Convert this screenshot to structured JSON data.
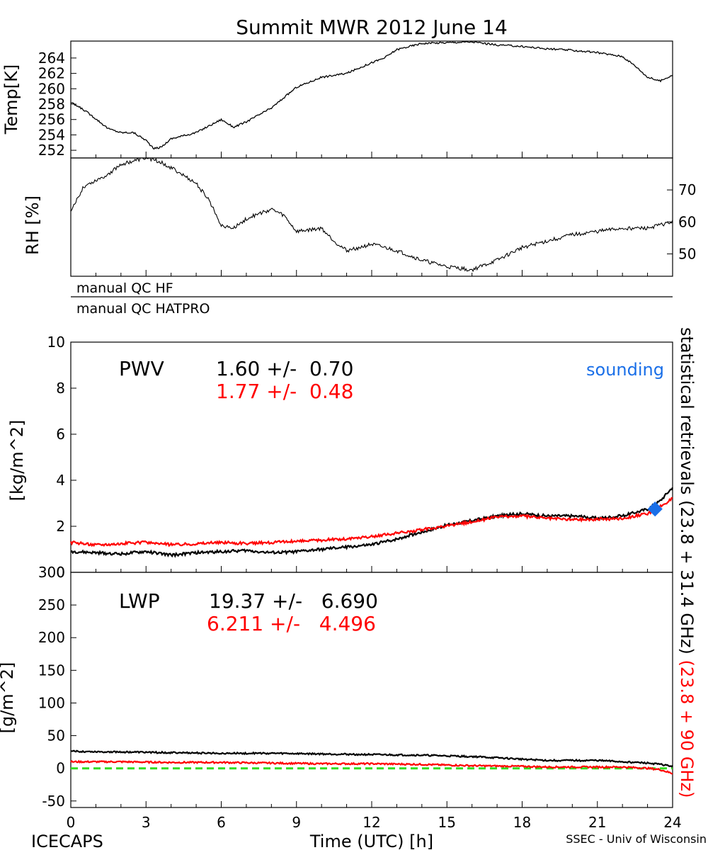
{
  "title": "Summit MWR 2012 June 14",
  "footer": {
    "left": "ICECAPS",
    "center": "Time (UTC) [h]",
    "right": "SSEC - Univ of Wisconsin"
  },
  "colors": {
    "hf": "#000000",
    "hatpro": "#ff0000",
    "sounding": "#1a6fe8",
    "zero_line": "#33dd22"
  },
  "chart_data": [
    {
      "type": "line",
      "panel": "temperature",
      "ylabel": "Temp[K]",
      "ylim": [
        251,
        266.2
      ],
      "yticks": [
        252,
        254,
        256,
        258,
        260,
        262,
        264
      ],
      "x": [
        0,
        0.5,
        1,
        1.5,
        2,
        2.5,
        3,
        3.3,
        3.6,
        4,
        5,
        6,
        6.5,
        7,
        8,
        9,
        10,
        11,
        12,
        12.5,
        13,
        14,
        15,
        16,
        17,
        18,
        19,
        20,
        21,
        22,
        22.5,
        23,
        23.5,
        24
      ],
      "series": [
        {
          "name": "Temp",
          "values": [
            258.2,
            257.3,
            256.1,
            254.8,
            254.3,
            254.3,
            253.3,
            252.2,
            252.4,
            253.5,
            254.3,
            256.0,
            255.0,
            255.7,
            257.5,
            260.2,
            261.5,
            262.0,
            263.4,
            264.0,
            265.1,
            265.9,
            266.0,
            266.1,
            265.7,
            265.5,
            265.2,
            265.0,
            264.7,
            264.2,
            263.0,
            261.5,
            261.0,
            261.8
          ]
        }
      ]
    },
    {
      "type": "line",
      "panel": "relative_humidity",
      "ylabel": "RH [%]",
      "ylim": [
        43,
        80
      ],
      "yticks": [
        50,
        60,
        70
      ],
      "x": [
        0,
        0.5,
        1,
        1.5,
        2,
        2.5,
        3,
        3.5,
        4,
        5,
        5.5,
        6,
        6.5,
        7,
        8,
        8.5,
        9,
        10,
        10.5,
        11,
        12,
        13,
        14,
        15,
        16,
        17,
        18,
        19,
        20,
        21,
        22,
        23,
        24
      ],
      "series": [
        {
          "name": "RH",
          "values": [
            63,
            71,
            73,
            75,
            78,
            79,
            80,
            79,
            77,
            72,
            67,
            59,
            58,
            61,
            64,
            62,
            57,
            58,
            54,
            51,
            53,
            51,
            48,
            46,
            45,
            48,
            52,
            54,
            56,
            57,
            58,
            58,
            60
          ]
        }
      ]
    },
    {
      "type": "line",
      "panel": "precipitable_water_vapor",
      "label": "PWV",
      "ylabel": "[kg/m^2]",
      "ylim": [
        0,
        10
      ],
      "yticks": [
        0,
        2,
        4,
        6,
        8,
        10
      ],
      "stats": [
        {
          "name": "HF",
          "text": "1.60 +/-  0.70"
        },
        {
          "name": "HATPRO",
          "text": "1.77 +/-  0.48"
        }
      ],
      "x": [
        0,
        1,
        2,
        3,
        4,
        5,
        6,
        7,
        8,
        9,
        10,
        11,
        12,
        13,
        14,
        15,
        16,
        17,
        18,
        19,
        20,
        21,
        22,
        23,
        23.5,
        24
      ],
      "series": [
        {
          "name": "HF",
          "values": [
            0.9,
            0.85,
            0.8,
            0.9,
            0.75,
            0.85,
            0.9,
            0.95,
            0.85,
            0.9,
            1.0,
            1.1,
            1.2,
            1.45,
            1.75,
            2.05,
            2.25,
            2.45,
            2.55,
            2.45,
            2.45,
            2.35,
            2.45,
            2.75,
            3.1,
            3.7
          ]
        },
        {
          "name": "HATPRO",
          "values": [
            1.3,
            1.2,
            1.25,
            1.3,
            1.2,
            1.25,
            1.3,
            1.25,
            1.3,
            1.35,
            1.4,
            1.45,
            1.55,
            1.7,
            1.85,
            2.0,
            2.2,
            2.4,
            2.45,
            2.35,
            2.3,
            2.3,
            2.35,
            2.55,
            2.85,
            3.2
          ]
        }
      ],
      "sounding": {
        "label": "sounding",
        "x": 23.3,
        "y": 2.75
      }
    },
    {
      "type": "line",
      "panel": "liquid_water_path",
      "label": "LWP",
      "ylabel": "[g/m^2]",
      "ylim": [
        -60,
        300
      ],
      "yticks": [
        -50,
        0,
        50,
        100,
        150,
        200,
        250,
        300
      ],
      "stats": [
        {
          "name": "HF",
          "text": "19.37 +/-   6.690"
        },
        {
          "name": "HATPRO",
          "text": "6.211 +/-   4.496"
        }
      ],
      "x": [
        0,
        2,
        4,
        6,
        8,
        10,
        12,
        14,
        16,
        18,
        19,
        20,
        21,
        22,
        23,
        23.5,
        24
      ],
      "series": [
        {
          "name": "HF",
          "values": [
            26,
            25,
            24,
            23,
            23,
            22,
            21,
            20,
            18,
            14,
            12,
            12,
            12,
            10,
            8,
            6,
            3
          ]
        },
        {
          "name": "HATPRO",
          "values": [
            10,
            10,
            9,
            9,
            8,
            7,
            7,
            6,
            4,
            3,
            2,
            2,
            2,
            2,
            0,
            -2,
            -8
          ]
        },
        {
          "name": "zero",
          "values": [
            0,
            0,
            0,
            0,
            0,
            0,
            0,
            0,
            0,
            0,
            0,
            0,
            0,
            0,
            0,
            0,
            0
          ]
        }
      ]
    }
  ],
  "qc": {
    "hf_label": "manual  QC  HF",
    "hatpro_label": "manual  QC  HATPRO"
  },
  "xaxis": {
    "xlim": [
      0,
      24
    ],
    "ticks": [
      0,
      3,
      6,
      9,
      12,
      15,
      18,
      21,
      24
    ]
  },
  "right_label": {
    "black": "statistical  retrievals  (23.8 + 31.4 GHz)",
    "red": "(23.8 + 90 GHz)"
  }
}
